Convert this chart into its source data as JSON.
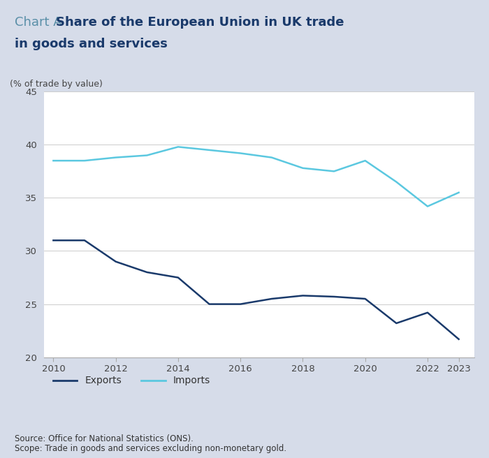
{
  "title_chart_label": "Chart A",
  "title_main_line1": "Share of the European Union in UK trade",
  "title_main_line2": "in goods and services",
  "ylabel": "(% of trade by value)",
  "background_color": "#d6dce9",
  "plot_bg_color": "#ffffff",
  "ylim": [
    20,
    45
  ],
  "yticks": [
    20,
    25,
    30,
    35,
    40,
    45
  ],
  "xticks": [
    2010,
    2012,
    2014,
    2016,
    2018,
    2020,
    2022,
    2023
  ],
  "exports_years": [
    2010,
    2011,
    2012,
    2013,
    2014,
    2015,
    2016,
    2017,
    2018,
    2019,
    2020,
    2021,
    2022,
    2023
  ],
  "exports_values": [
    31.0,
    31.0,
    29.0,
    28.0,
    27.5,
    25.0,
    25.0,
    25.5,
    25.8,
    25.7,
    25.5,
    23.2,
    24.2,
    21.7
  ],
  "imports_years": [
    2010,
    2011,
    2012,
    2013,
    2014,
    2015,
    2016,
    2017,
    2018,
    2019,
    2020,
    2021,
    2022,
    2023
  ],
  "imports_values": [
    38.5,
    38.5,
    38.8,
    39.0,
    39.8,
    39.5,
    39.2,
    38.8,
    37.8,
    37.5,
    38.5,
    36.5,
    34.2,
    35.5
  ],
  "exports_color": "#1a3a6b",
  "imports_color": "#5bc8e0",
  "exports_label": "Exports",
  "imports_label": "Imports",
  "linewidth": 1.8,
  "source_line1": "Source: Office for National Statistics (ONS).",
  "source_line2": "Scope: Trade in goods and services excluding non-monetary gold.",
  "title_chart_label_color": "#5a8fa8",
  "title_main_color": "#1a3a6b",
  "ylabel_color": "#444444",
  "source_color": "#333333",
  "tick_color": "#444444",
  "grid_color": "#cccccc",
  "spine_color": "#aaaaaa"
}
